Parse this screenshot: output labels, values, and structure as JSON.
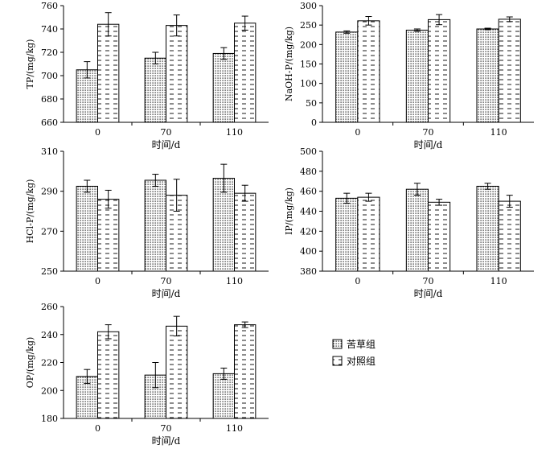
{
  "chart_data": [
    {
      "type": "bar",
      "ylabel": "TP/(mg/kg)",
      "xlabel": "时间/d",
      "categories": [
        "0",
        "70",
        "110"
      ],
      "ylim": [
        660,
        760
      ],
      "yticks": [
        660,
        680,
        700,
        720,
        740,
        760
      ],
      "series": [
        {
          "name": "苦草组",
          "values": [
            705,
            715,
            719
          ],
          "errors": [
            7,
            5,
            5
          ]
        },
        {
          "name": "对照组",
          "values": [
            744,
            743,
            745
          ],
          "errors": [
            10,
            9,
            6
          ]
        }
      ]
    },
    {
      "type": "bar",
      "ylabel": "NaOH-P/(mg/kg)",
      "xlabel": "时间/d",
      "categories": [
        "0",
        "70",
        "110"
      ],
      "ylim": [
        0,
        300
      ],
      "yticks": [
        0,
        50,
        100,
        150,
        200,
        250,
        300
      ],
      "series": [
        {
          "name": "苦草组",
          "values": [
            232,
            237,
            240
          ],
          "errors": [
            3,
            3,
            2
          ]
        },
        {
          "name": "对照组",
          "values": [
            261,
            264,
            265
          ],
          "errors": [
            11,
            13,
            6
          ]
        }
      ]
    },
    {
      "type": "bar",
      "ylabel": "HCl-P/(mg/kg)",
      "xlabel": "时间/d",
      "categories": [
        "0",
        "70",
        "110"
      ],
      "ylim": [
        250,
        310
      ],
      "yticks": [
        250,
        270,
        290,
        310
      ],
      "series": [
        {
          "name": "苦草组",
          "values": [
            292.5,
            295.5,
            296.5
          ],
          "errors": [
            3,
            3,
            7
          ]
        },
        {
          "name": "对照组",
          "values": [
            286,
            288,
            289
          ],
          "errors": [
            4.5,
            8,
            4
          ]
        }
      ]
    },
    {
      "type": "bar",
      "ylabel": "IP/(mg/kg)",
      "xlabel": "时间/d",
      "categories": [
        "0",
        "70",
        "110"
      ],
      "ylim": [
        380,
        500
      ],
      "yticks": [
        380,
        400,
        420,
        440,
        460,
        480,
        500
      ],
      "series": [
        {
          "name": "苦草组",
          "values": [
            453,
            462,
            465
          ],
          "errors": [
            5,
            6,
            3
          ]
        },
        {
          "name": "对照组",
          "values": [
            454,
            449,
            450
          ],
          "errors": [
            4,
            3,
            6
          ]
        }
      ]
    },
    {
      "type": "bar",
      "ylabel": "OP/(mg/kg)",
      "xlabel": "时间/d",
      "categories": [
        "0",
        "70",
        "110"
      ],
      "ylim": [
        180,
        260
      ],
      "yticks": [
        180,
        200,
        220,
        240,
        260
      ],
      "series": [
        {
          "name": "苦草组",
          "values": [
            210,
            211,
            212
          ],
          "errors": [
            5,
            9,
            4
          ]
        },
        {
          "name": "对照组",
          "values": [
            242,
            246,
            247
          ],
          "errors": [
            5,
            7,
            2
          ]
        }
      ]
    }
  ],
  "legend": {
    "items": [
      {
        "label": "苦草组",
        "pattern": "dots"
      },
      {
        "label": "对照组",
        "pattern": "dashes"
      }
    ]
  }
}
